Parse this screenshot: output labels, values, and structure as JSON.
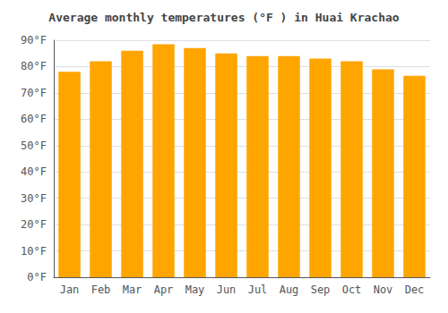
{
  "chart_data": {
    "type": "bar",
    "title": "Average monthly temperatures (°F ) in Huai Krachao",
    "categories": [
      "Jan",
      "Feb",
      "Mar",
      "Apr",
      "May",
      "Jun",
      "Jul",
      "Aug",
      "Sep",
      "Oct",
      "Nov",
      "Dec"
    ],
    "values": [
      78,
      82,
      86,
      88.5,
      87,
      85,
      84,
      84,
      83,
      82,
      79,
      76.5
    ],
    "color": "#FFA500",
    "ylim": [
      0,
      90
    ],
    "yticks": [
      {
        "value": 0,
        "label": "0°F"
      },
      {
        "value": 10,
        "label": "10°F"
      },
      {
        "value": 20,
        "label": "20°F"
      },
      {
        "value": 30,
        "label": "30°F"
      },
      {
        "value": 40,
        "label": "40°F"
      },
      {
        "value": 50,
        "label": "50°F"
      },
      {
        "value": 60,
        "label": "60°F"
      },
      {
        "value": 70,
        "label": "70°F"
      },
      {
        "value": 80,
        "label": "80°F"
      },
      {
        "value": 90,
        "label": "90°F"
      }
    ],
    "grid": true
  }
}
